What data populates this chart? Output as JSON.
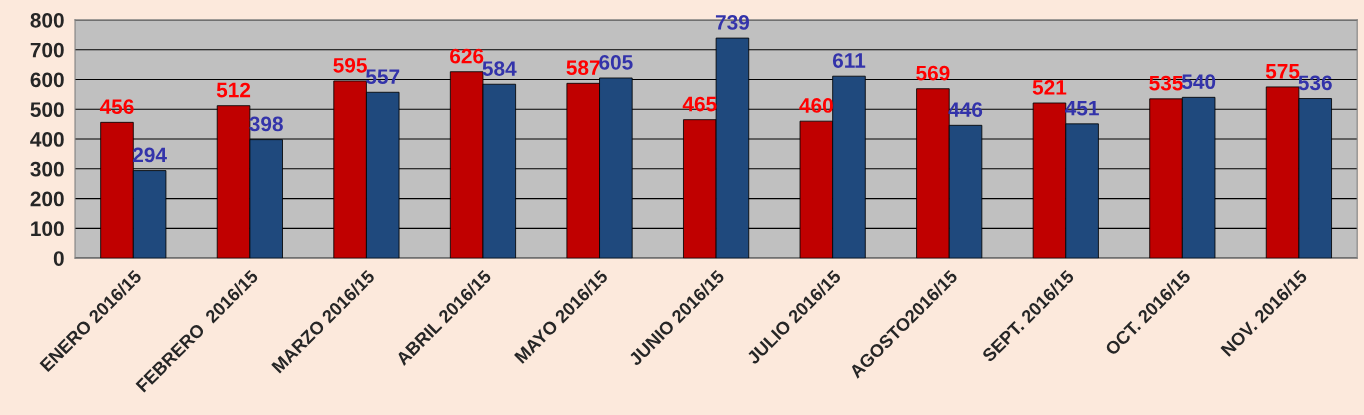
{
  "chart_data": {
    "type": "bar",
    "categories": [
      "ENERO 2016/15",
      "FEBRERO  2016/15",
      "MARZO 2016/15",
      "ABRIL 2016/15",
      "MAYO 2016/15",
      "JUNIO 2016/15",
      "JULIO 2016/15",
      "AGOSTO2016/15",
      "SEPT. 2016/15",
      "OCT. 2016/15",
      "NOV. 2016/15"
    ],
    "series": [
      {
        "color": "#c00000",
        "values": [
          456,
          512,
          595,
          626,
          587,
          465,
          460,
          569,
          521,
          535,
          575
        ]
      },
      {
        "color": "#1f497d",
        "values": [
          294,
          398,
          557,
          584,
          605,
          739,
          611,
          446,
          451,
          540,
          536
        ]
      }
    ],
    "ylim": [
      0,
      800
    ],
    "yticks": [
      0,
      100,
      200,
      300,
      400,
      500,
      600,
      700,
      800
    ],
    "grid": "y",
    "data_labels": true
  }
}
